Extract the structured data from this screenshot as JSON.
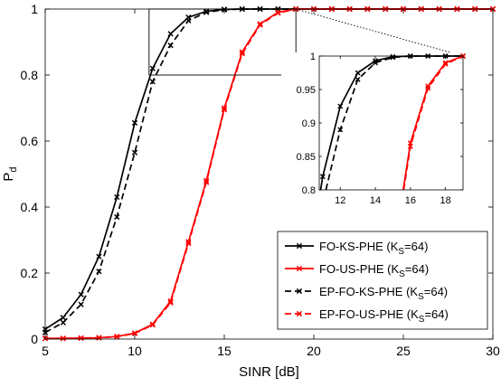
{
  "chart_data": {
    "type": "line",
    "xlabel": "SINR [dB]",
    "ylabel": "P",
    "ylabel_sub": "d",
    "xlim": [
      5,
      30
    ],
    "ylim": [
      0,
      1
    ],
    "xticks": [
      5,
      10,
      15,
      20,
      25,
      30
    ],
    "yticks": [
      0,
      0.2,
      0.4,
      0.6,
      0.8,
      1
    ],
    "xtick_labels": [
      "5",
      "10",
      "15",
      "20",
      "25",
      "30"
    ],
    "ytick_labels": [
      "0",
      "0.2",
      "0.4",
      "0.6",
      "0.8",
      "1"
    ],
    "grid": false,
    "legend_position": "bottom-right",
    "series": [
      {
        "name": "FO-KS-PHE",
        "name_suffix": "(K",
        "name_sub": "S",
        "name_tail": "=64)",
        "color": "#000000",
        "dash": "solid",
        "x": [
          5,
          6,
          7,
          8,
          9,
          10,
          11,
          12,
          13,
          14,
          15,
          16,
          17,
          18,
          19,
          20,
          21,
          22,
          23,
          24,
          25,
          26,
          27,
          28,
          29,
          30
        ],
        "y": [
          0.03,
          0.065,
          0.135,
          0.25,
          0.43,
          0.655,
          0.82,
          0.925,
          0.975,
          0.993,
          0.999,
          1,
          1,
          1,
          1,
          1,
          1,
          1,
          1,
          1,
          1,
          1,
          1,
          1,
          1,
          1
        ]
      },
      {
        "name": "FO-US-PHE",
        "name_suffix": "(K",
        "name_sub": "S",
        "name_tail": "=64)",
        "color": "#ff0000",
        "dash": "solid",
        "x": [
          5,
          6,
          7,
          8,
          9,
          10,
          11,
          12,
          13,
          14,
          15,
          16,
          17,
          18,
          19,
          20,
          21,
          22,
          23,
          24,
          25,
          26,
          27,
          28,
          29,
          30
        ],
        "y": [
          0.002,
          0.002,
          0.003,
          0.004,
          0.008,
          0.018,
          0.045,
          0.115,
          0.295,
          0.48,
          0.7,
          0.87,
          0.955,
          0.99,
          1,
          1,
          1,
          1,
          1,
          1,
          1,
          1,
          1,
          1,
          1,
          1
        ]
      },
      {
        "name": "EP-FO-KS-PHE",
        "name_suffix": "(K",
        "name_sub": "S",
        "name_tail": "=64)",
        "color": "#000000",
        "dash": "dashed",
        "x": [
          5,
          6,
          7,
          8,
          9,
          10,
          11,
          12,
          13,
          14,
          15,
          16,
          17,
          18,
          19,
          20,
          21,
          22,
          23,
          24,
          25,
          26,
          27,
          28,
          29,
          30
        ],
        "y": [
          0.02,
          0.05,
          0.105,
          0.205,
          0.37,
          0.565,
          0.78,
          0.89,
          0.965,
          0.99,
          0.998,
          1,
          1,
          1,
          1,
          1,
          1,
          1,
          1,
          1,
          1,
          1,
          1,
          1,
          1,
          1
        ]
      },
      {
        "name": "EP-FO-US-PHE",
        "name_suffix": "(K",
        "name_sub": "S",
        "name_tail": "=64)",
        "color": "#ff0000",
        "dash": "dashed",
        "x": [
          5,
          6,
          7,
          8,
          9,
          10,
          11,
          12,
          13,
          14,
          15,
          16,
          17,
          18,
          19,
          20,
          21,
          22,
          23,
          24,
          25,
          26,
          27,
          28,
          29,
          30
        ],
        "y": [
          0.002,
          0.002,
          0.003,
          0.004,
          0.007,
          0.017,
          0.043,
          0.11,
          0.29,
          0.475,
          0.695,
          0.865,
          0.952,
          0.988,
          1,
          1,
          1,
          1,
          1,
          1,
          1,
          1,
          1,
          1,
          1,
          1
        ]
      }
    ],
    "zoom_region": {
      "xlim": [
        10.8,
        19
      ],
      "ylim": [
        0.8,
        1
      ]
    },
    "inset": {
      "xlim": [
        10.8,
        19
      ],
      "ylim": [
        0.8,
        1
      ],
      "xticks": [
        12,
        14,
        16,
        18
      ],
      "yticks": [
        0.8,
        0.85,
        0.9,
        0.95,
        1
      ],
      "xtick_labels": [
        "12",
        "14",
        "16",
        "18"
      ],
      "ytick_labels": [
        "0.8",
        "0.85",
        "0.9",
        "0.95",
        "1"
      ]
    }
  }
}
